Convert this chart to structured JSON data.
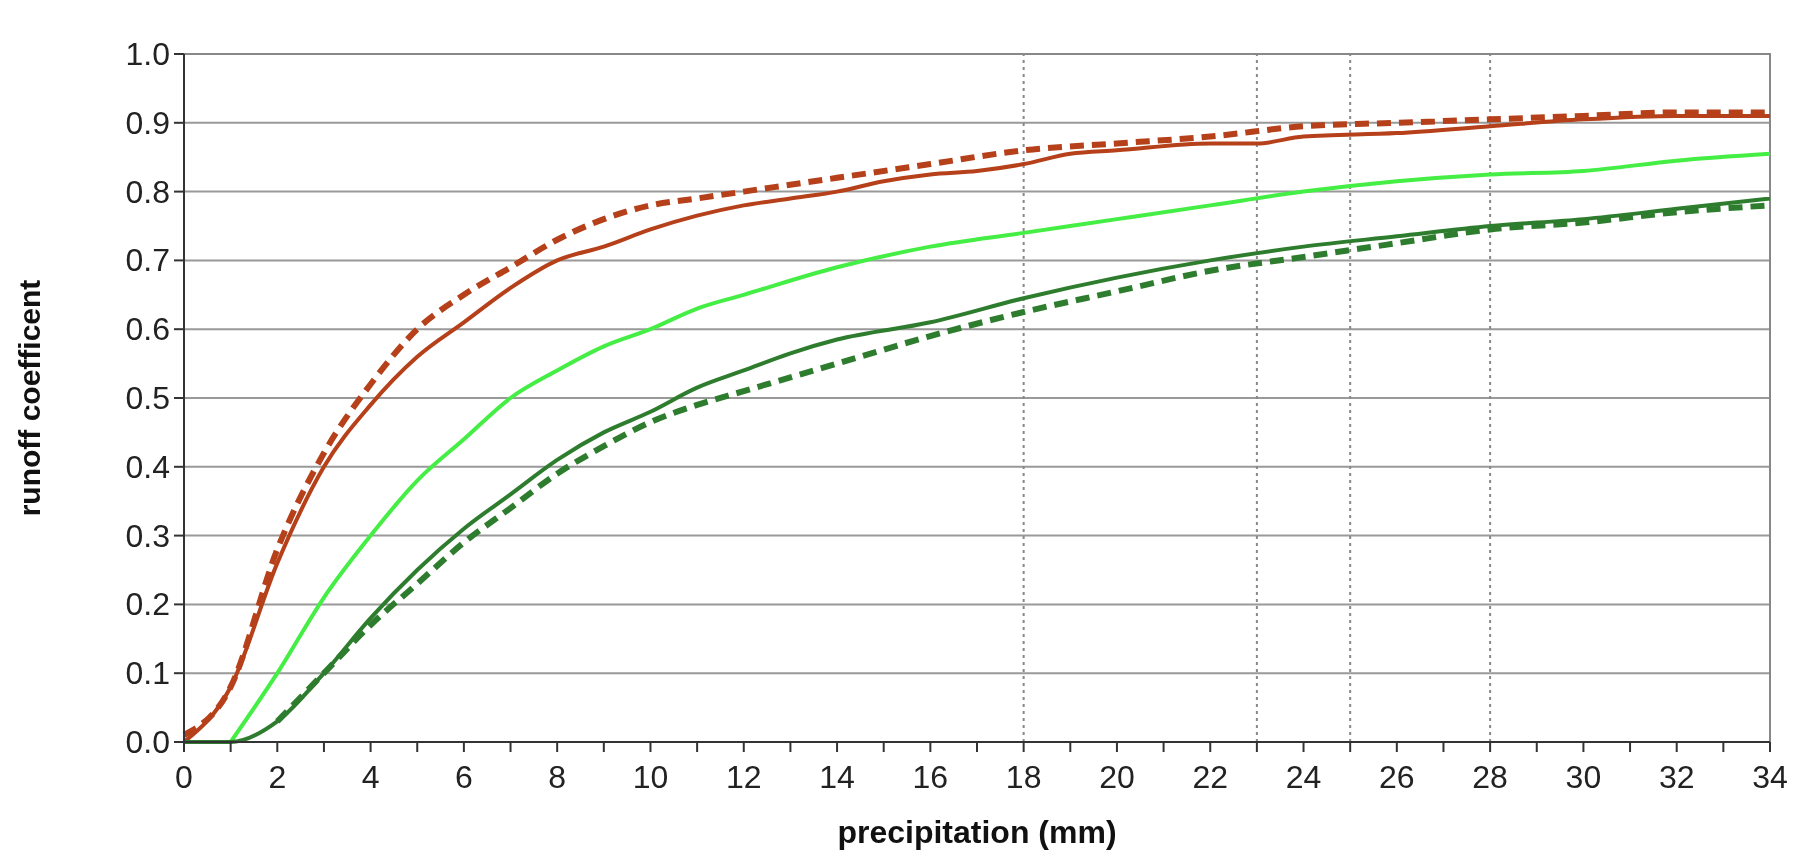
{
  "chart_data": {
    "type": "line",
    "xlabel": "precipitation (mm)",
    "ylabel": "runoff coefficent",
    "xlim": [
      0,
      34
    ],
    "ylim": [
      0,
      1
    ],
    "xticks": [
      0,
      {
        "value": 1,
        "label": null
      },
      2,
      {
        "value": 3,
        "label": null
      },
      4,
      {
        "value": 5,
        "label": null
      },
      6,
      {
        "value": 7,
        "label": null
      },
      8,
      {
        "value": 9,
        "label": null
      },
      10,
      {
        "value": 11,
        "label": null
      },
      12,
      {
        "value": 13,
        "label": null
      },
      14,
      {
        "value": 15,
        "label": null
      },
      16,
      {
        "value": 17,
        "label": null
      },
      18,
      {
        "value": 19,
        "label": null
      },
      20,
      {
        "value": 21,
        "label": null
      },
      22,
      {
        "value": 23,
        "label": null
      },
      24,
      {
        "value": 25,
        "label": null
      },
      26,
      {
        "value": 27,
        "label": null
      },
      28,
      {
        "value": 29,
        "label": null
      },
      30,
      {
        "value": 31,
        "label": null
      },
      32,
      {
        "value": 33,
        "label": null
      },
      34
    ],
    "yticks": [
      {
        "value": 0,
        "label": "0.0"
      },
      0.1,
      0.2,
      0.3,
      0.4,
      0.5,
      0.6,
      0.7,
      0.8,
      0.9,
      {
        "value": 1,
        "label": "1.0"
      }
    ],
    "grid": "y",
    "marker": "none",
    "ref_lines": [
      {
        "axis": "x",
        "value": 18,
        "line_style": "dotted",
        "color": "#888888"
      },
      {
        "axis": "x",
        "value": 23,
        "line_style": "dotted",
        "color": "#888888"
      },
      {
        "axis": "x",
        "value": 25,
        "line_style": "dotted",
        "color": "#888888"
      },
      {
        "axis": "x",
        "value": 28,
        "line_style": "dotted",
        "color": "#888888"
      }
    ],
    "series": [
      {
        "color": "#b5401a",
        "line_style": "solid",
        "x": [
          0,
          1,
          2,
          3,
          4,
          5,
          6,
          7,
          8,
          9,
          10,
          11,
          12,
          13,
          14,
          15,
          16,
          17,
          18,
          19,
          20,
          22,
          23,
          24,
          26,
          28,
          30,
          32,
          34
        ],
        "values": [
          0,
          0.08,
          0.26,
          0.4,
          0.49,
          0.56,
          0.61,
          0.66,
          0.7,
          0.72,
          0.745,
          0.765,
          0.78,
          0.79,
          0.8,
          0.815,
          0.825,
          0.83,
          0.84,
          0.855,
          0.86,
          0.87,
          0.87,
          0.88,
          0.885,
          0.895,
          0.905,
          0.91,
          0.91
        ]
      },
      {
        "color": "#b5401a",
        "line_style": "dashed",
        "x": [
          0,
          1,
          2,
          3,
          4,
          5,
          6,
          7,
          8,
          9,
          10,
          11,
          12,
          14,
          16,
          18,
          20,
          22,
          24,
          26,
          28,
          30,
          32,
          34
        ],
        "values": [
          0.01,
          0.08,
          0.28,
          0.42,
          0.52,
          0.6,
          0.65,
          0.69,
          0.73,
          0.76,
          0.78,
          0.79,
          0.8,
          0.82,
          0.84,
          0.86,
          0.87,
          0.88,
          0.895,
          0.9,
          0.905,
          0.91,
          0.915,
          0.915
        ]
      },
      {
        "color": "#44ee44",
        "line_style": "solid",
        "x": [
          1,
          2,
          3,
          4,
          5,
          6,
          7,
          8,
          9,
          10,
          11,
          12,
          14,
          16,
          18,
          20,
          22,
          24,
          26,
          28,
          30,
          32,
          34
        ],
        "values": [
          0,
          0.1,
          0.21,
          0.3,
          0.38,
          0.44,
          0.5,
          0.54,
          0.575,
          0.6,
          0.63,
          0.65,
          0.69,
          0.72,
          0.74,
          0.76,
          0.78,
          0.8,
          0.815,
          0.825,
          0.83,
          0.845,
          0.855
        ]
      },
      {
        "color": "#2e7d2e",
        "line_style": "solid",
        "x": [
          0,
          1,
          2,
          3,
          4,
          5,
          6,
          7,
          8,
          9,
          10,
          11,
          12,
          13,
          14,
          16,
          18,
          20,
          22,
          24,
          26,
          28,
          30,
          32,
          34
        ],
        "values": [
          0,
          0,
          0.03,
          0.1,
          0.18,
          0.25,
          0.31,
          0.36,
          0.41,
          0.45,
          0.48,
          0.515,
          0.54,
          0.565,
          0.585,
          0.61,
          0.645,
          0.675,
          0.7,
          0.72,
          0.735,
          0.75,
          0.76,
          0.775,
          0.79
        ]
      },
      {
        "color": "#2e7d2e",
        "line_style": "dashed",
        "x": [
          2,
          3,
          4,
          5,
          6,
          7,
          8,
          9,
          10,
          11,
          12,
          14,
          16,
          18,
          20,
          22,
          24,
          26,
          28,
          30,
          32,
          34
        ],
        "values": [
          0.03,
          0.1,
          0.17,
          0.23,
          0.29,
          0.34,
          0.39,
          0.43,
          0.465,
          0.49,
          0.51,
          0.55,
          0.59,
          0.625,
          0.655,
          0.685,
          0.705,
          0.725,
          0.745,
          0.755,
          0.77,
          0.78
        ]
      }
    ]
  }
}
